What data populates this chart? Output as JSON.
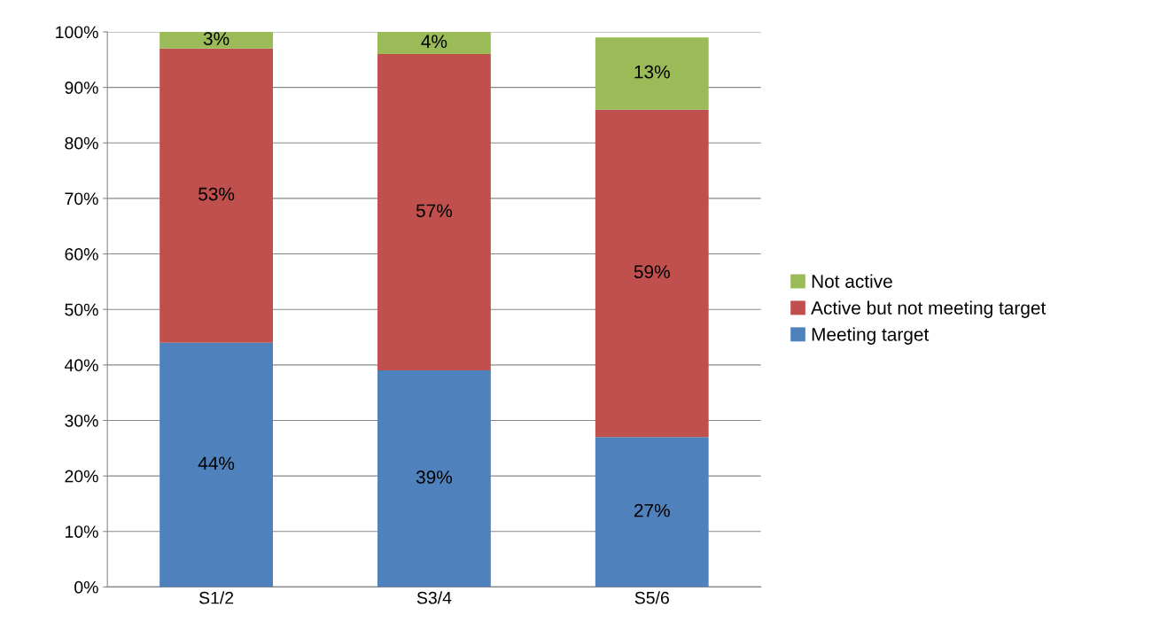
{
  "chart_data": {
    "type": "bar",
    "stacked": true,
    "categories": [
      "S1/2",
      "S3/4",
      "S5/6"
    ],
    "series": [
      {
        "name": "Meeting target",
        "color": "#4f81bd",
        "values": [
          44,
          39,
          27
        ],
        "value_labels": [
          "44%",
          "39%",
          "27%"
        ]
      },
      {
        "name": "Active but not meeting target",
        "color": "#c0504d",
        "values": [
          53,
          57,
          59
        ],
        "value_labels": [
          "53%",
          "57%",
          "59%"
        ]
      },
      {
        "name": "Not active",
        "color": "#9bbb59",
        "values": [
          3,
          4,
          13
        ],
        "value_labels": [
          "3%",
          "4%",
          "13%"
        ]
      }
    ],
    "ylim": [
      0,
      100
    ],
    "yticks": [
      {
        "value": 0,
        "label": "0%"
      },
      {
        "value": 10,
        "label": "10%"
      },
      {
        "value": 20,
        "label": "20%"
      },
      {
        "value": 30,
        "label": "30%"
      },
      {
        "value": 40,
        "label": "40%"
      },
      {
        "value": 50,
        "label": "50%"
      },
      {
        "value": 60,
        "label": "60%"
      },
      {
        "value": 70,
        "label": "70%"
      },
      {
        "value": 80,
        "label": "80%"
      },
      {
        "value": 90,
        "label": "90%"
      },
      {
        "value": 100,
        "label": "100%"
      }
    ],
    "grid": "y",
    "legend": "right"
  }
}
